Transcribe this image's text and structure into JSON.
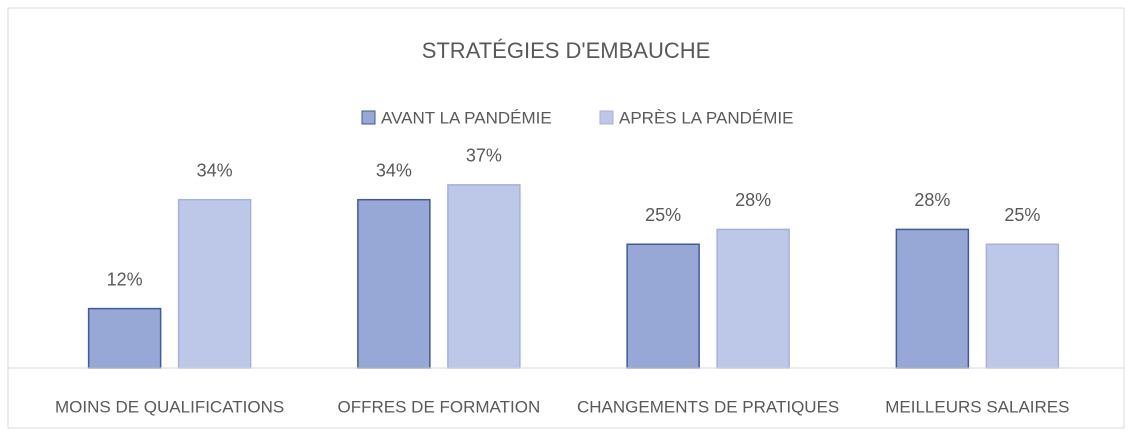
{
  "chart_data": {
    "type": "bar",
    "title": "STRATÉGIES D'EMBAUCHE",
    "categories": [
      "MOINS DE QUALIFICATIONS",
      "OFFRES DE FORMATION",
      "CHANGEMENTS DE PRATIQUES",
      "MEILLEURS SALAIRES"
    ],
    "series": [
      {
        "name": "AVANT LA PANDÉMIE",
        "color": "#98a8d6",
        "border": "#3f5a9d",
        "values": [
          12,
          34,
          25,
          28
        ],
        "value_labels": [
          "12%",
          "34%",
          "25%",
          "28%"
        ]
      },
      {
        "name": "APRÈS LA PANDÉMIE",
        "color": "#bdc7e7",
        "border": "#a3b2de",
        "values": [
          34,
          37,
          28,
          25
        ],
        "value_labels": [
          "34%",
          "37%",
          "28%",
          "25%"
        ]
      }
    ],
    "ylim": [
      0,
      40
    ],
    "legend": "top"
  }
}
